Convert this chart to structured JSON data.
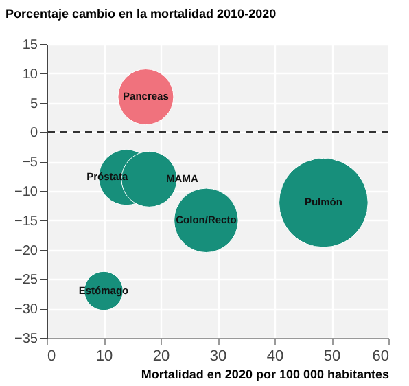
{
  "chart_data": {
    "type": "bubble",
    "title": "Porcentaje cambio en la mortalidad 2010-2020",
    "xlabel": "Mortalidad en 2020 por 100 000 habitantes",
    "series": [
      {
        "name": "Pancreas",
        "color": "#f0727d",
        "x": [
          17.4
        ],
        "values": [
          6
        ],
        "sizes": [
          0.39
        ]
      },
      {
        "name": "Próstata",
        "color": "#178f7b",
        "x": [
          14
        ],
        "values": [
          -7.7
        ],
        "sizes": [
          0.39
        ]
      },
      {
        "name": "MAMA",
        "color": "#178f7b",
        "x": [
          18
        ],
        "values": [
          -8
        ],
        "sizes": [
          0.39
        ]
      },
      {
        "name": "Colon/Recto",
        "color": "#178f7b",
        "x": [
          28
        ],
        "values": [
          -15
        ],
        "sizes": [
          0.52
        ]
      },
      {
        "name": "Pulmón",
        "color": "#178f7b",
        "x": [
          48.6
        ],
        "values": [
          -12
        ],
        "sizes": [
          1
        ]
      },
      {
        "name": "Estómago",
        "color": "#178f7b",
        "x": [
          10
        ],
        "values": [
          -27
        ],
        "sizes": [
          0.19
        ]
      }
    ],
    "xlim": [
      0,
      60
    ],
    "xticks": [
      0,
      10,
      20,
      30,
      40,
      50,
      60
    ],
    "ylim": [
      -35,
      15
    ],
    "yticks": [
      -35,
      -30,
      -25,
      -20,
      -15,
      -10,
      -5,
      0,
      5,
      10,
      15
    ],
    "ref_lines": [
      {
        "axis": "y",
        "value": 0,
        "line_style": "dashed",
        "color": "#333333"
      }
    ],
    "grid": true,
    "legend": false
  }
}
